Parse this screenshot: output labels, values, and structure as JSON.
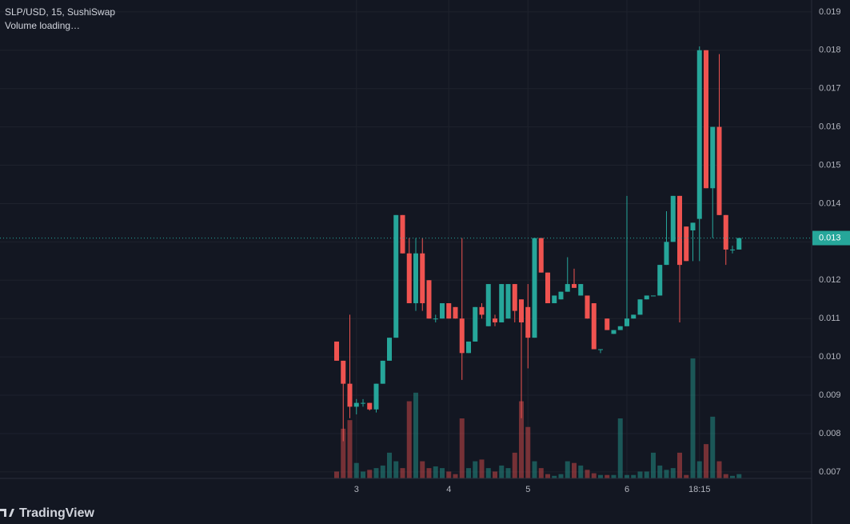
{
  "chart_data": {
    "type": "candlestick",
    "title": "SLP/USD, 15, SushiSwap",
    "subtitle": "Volume loading…",
    "brand": "TradingView",
    "up_color": "#26a69a",
    "down_color": "#ef5350",
    "grid": true,
    "ylim": [
      0.00683,
      0.01931
    ],
    "yticks": [
      0.019,
      0.018,
      0.017,
      0.016,
      0.015,
      0.014,
      0.013,
      0.012,
      0.011,
      {
        "value": 0.01,
        "label": "0.010"
      },
      0.009,
      0.008,
      0.007
    ],
    "last_price": {
      "value": 0.0131,
      "label": "0.013"
    },
    "categories": [
      null,
      null,
      null,
      "3",
      null,
      null,
      null,
      null,
      null,
      null,
      null,
      null,
      null,
      null,
      null,
      null,
      null,
      "4",
      null,
      null,
      null,
      null,
      null,
      null,
      null,
      null,
      null,
      null,
      null,
      "5",
      null,
      null,
      null,
      null,
      null,
      null,
      null,
      null,
      null,
      null,
      null,
      null,
      null,
      null,
      "6",
      null,
      null,
      null,
      null,
      null,
      null,
      null,
      null,
      null,
      null,
      "18:15",
      null,
      null,
      null,
      null,
      null,
      null
    ],
    "open": [
      0.0104,
      0.0099,
      0.0093,
      0.0087,
      0.0088,
      0.0088,
      0.00863,
      0.0093,
      0.0099,
      0.0105,
      0.0137,
      0.0127,
      0.0114,
      0.0127,
      0.012,
      0.011,
      0.011,
      0.0114,
      0.0113,
      0.011,
      0.0101,
      0.0104,
      0.0113,
      0.0108,
      0.011,
      0.0109,
      0.011,
      0.0119,
      0.0115,
      0.0113,
      0.0105,
      0.0131,
      0.0122,
      0.0114,
      0.0115,
      0.0117,
      0.0119,
      0.0116,
      0.0116,
      0.0114,
      0.0102,
      0.011,
      0.0106,
      0.0107,
      0.0108,
      0.011,
      0.0111,
      0.0115,
      0.0116,
      0.0116,
      0.0124,
      0.013,
      0.0142,
      0.0134,
      0.0133,
      0.0136,
      0.018,
      0.0144,
      0.016,
      0.0137,
      0.0128,
      0.0128
    ],
    "high": [
      0.0104,
      0.0099,
      0.0111,
      0.0089,
      0.0089,
      0.0088,
      0.0093,
      0.0099,
      0.0105,
      0.0137,
      0.0137,
      0.0131,
      0.0131,
      0.0131,
      0.012,
      0.0111,
      0.0114,
      0.0114,
      0.0113,
      0.0131,
      0.0104,
      0.0113,
      0.0114,
      0.0119,
      0.0111,
      0.0119,
      0.0119,
      0.0119,
      0.0115,
      0.0119,
      0.0131,
      0.0131,
      0.0122,
      0.0116,
      0.0117,
      0.0126,
      0.0123,
      0.0119,
      0.0116,
      0.0114,
      0.0102,
      0.011,
      0.0107,
      0.0108,
      0.0142,
      0.0111,
      0.0115,
      0.0116,
      0.0116,
      0.0124,
      0.0138,
      0.0142,
      0.0142,
      0.0134,
      0.0135,
      0.0181,
      0.018,
      0.016,
      0.0179,
      0.0137,
      0.0129,
      0.0131
    ],
    "low": [
      0.0099,
      0.0078,
      0.0084,
      0.0085,
      0.0087,
      0.0086,
      0.00855,
      0.0093,
      0.0099,
      0.0105,
      0.0127,
      0.0114,
      0.0112,
      0.0112,
      0.011,
      0.0109,
      0.011,
      0.011,
      0.011,
      0.0094,
      0.0101,
      0.0104,
      0.011,
      0.0108,
      0.0108,
      0.0109,
      0.011,
      0.0109,
      0.0084,
      0.0097,
      0.0105,
      0.0122,
      0.0114,
      0.0114,
      0.0115,
      0.0117,
      0.0118,
      0.0116,
      0.011,
      0.0102,
      0.0101,
      0.0107,
      0.0106,
      0.0107,
      0.0108,
      0.011,
      0.0111,
      0.0115,
      0.0116,
      0.0116,
      0.0124,
      0.013,
      0.0109,
      0.0125,
      0.0125,
      0.0125,
      0.0144,
      0.0131,
      0.0137,
      0.0124,
      0.0127,
      0.0128
    ],
    "close": [
      0.0099,
      0.0093,
      0.0087,
      0.0088,
      0.0088,
      0.00863,
      0.0093,
      0.0099,
      0.0105,
      0.0137,
      0.0127,
      0.0114,
      0.0127,
      0.0114,
      0.011,
      0.011,
      0.0114,
      0.011,
      0.011,
      0.0101,
      0.0104,
      0.0113,
      0.0111,
      0.0119,
      0.0109,
      0.0119,
      0.0119,
      0.0112,
      0.0109,
      0.0105,
      0.0131,
      0.0122,
      0.0114,
      0.0116,
      0.0117,
      0.0119,
      0.0118,
      0.0119,
      0.011,
      0.0102,
      0.0102,
      0.0107,
      0.0107,
      0.0108,
      0.011,
      0.0111,
      0.0115,
      0.0116,
      0.0116,
      0.0124,
      0.013,
      0.0142,
      0.0124,
      0.0125,
      0.0135,
      0.018,
      0.0144,
      0.016,
      0.0137,
      0.0128,
      0.0128,
      0.0131
    ],
    "volume": [
      8,
      58,
      68,
      18,
      8,
      10,
      12,
      15,
      30,
      20,
      12,
      90,
      100,
      20,
      12,
      14,
      12,
      8,
      5,
      70,
      12,
      20,
      22,
      12,
      8,
      15,
      12,
      30,
      90,
      60,
      20,
      12,
      5,
      3,
      5,
      20,
      18,
      15,
      10,
      6,
      4,
      4,
      4,
      70,
      4,
      4,
      8,
      8,
      30,
      15,
      10,
      12,
      30,
      4,
      140,
      20,
      40,
      72,
      20,
      5,
      3,
      5
    ]
  }
}
